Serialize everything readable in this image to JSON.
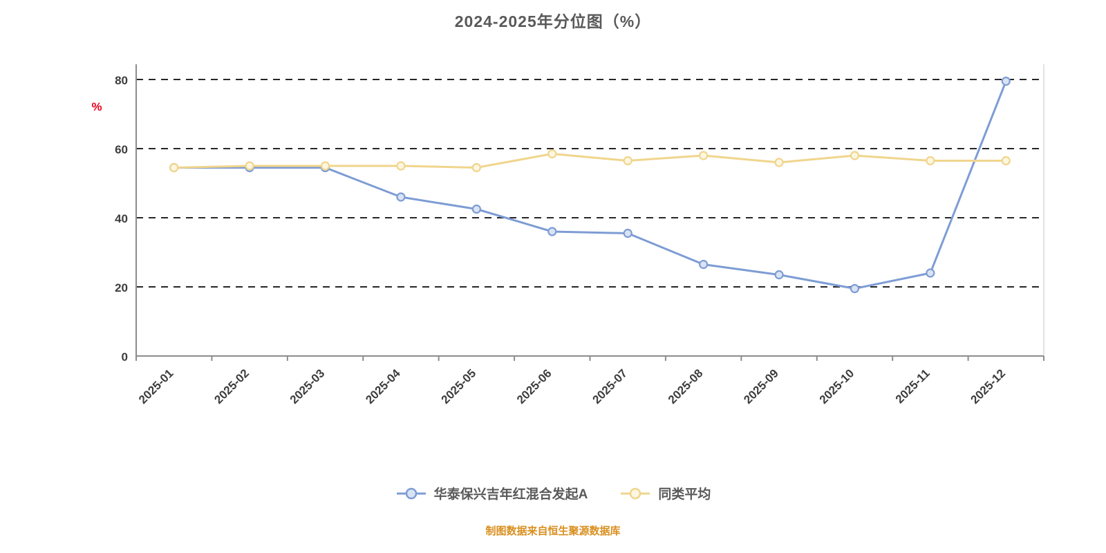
{
  "chart": {
    "title": "2024-2025年分位图（%）",
    "source_note": "制图数据来自恒生聚源数据库",
    "ylabel": "%"
  },
  "chart_data": {
    "type": "line",
    "title": "2024-2025年分位图（%）",
    "xlabel": "",
    "ylabel": "%",
    "categories": [
      "2025-01",
      "2025-02",
      "2025-03",
      "2025-04",
      "2025-05",
      "2025-06",
      "2025-07",
      "2025-08",
      "2025-09",
      "2025-10",
      "2025-11",
      "2025-12"
    ],
    "yticks": [
      0,
      20,
      40,
      60,
      80
    ],
    "ylim": [
      0,
      84
    ],
    "grid": "dashed-horizontal",
    "legend_position": "bottom",
    "series": [
      {
        "name": "华泰保兴吉年红混合发起A",
        "color": "#7d9cd4",
        "marker_fill": "#d9e3f4",
        "values": [
          54.5,
          54.5,
          54.5,
          46.0,
          42.5,
          36.0,
          35.5,
          26.5,
          23.5,
          19.5,
          24.0,
          79.5
        ]
      },
      {
        "name": "同类平均",
        "color": "#f0d58c",
        "marker_fill": "#fdf6e1",
        "values": [
          54.5,
          55.0,
          55.0,
          55.0,
          54.5,
          58.5,
          56.5,
          58.0,
          56.0,
          58.0,
          56.5,
          56.5
        ]
      }
    ],
    "source_note": "制图数据来自恒生聚源数据库"
  }
}
